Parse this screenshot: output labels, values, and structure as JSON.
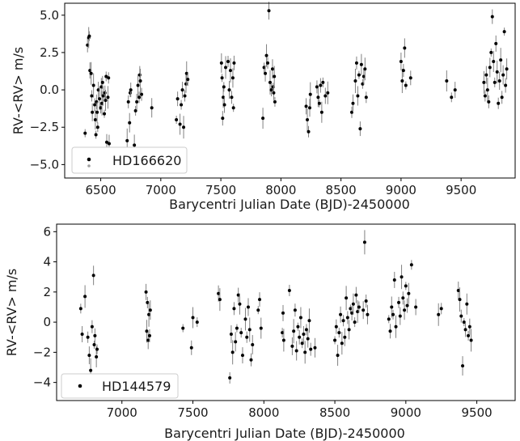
{
  "chart_data": [
    {
      "type": "scatter",
      "title": "",
      "xlabel": "Barycentri Julian Date (BJD)-2450000",
      "ylabel": "RV-<RV> m/s",
      "xlim": [
        6200,
        9950
      ],
      "ylim": [
        -5.9,
        5.8
      ],
      "xticks": [
        6500,
        7000,
        7500,
        8000,
        8500,
        9000,
        9500
      ],
      "xtick_labels": [
        "6500",
        "7000",
        "7500",
        "8000",
        "8500",
        "9000",
        "9500"
      ],
      "yticks": [
        -5.0,
        -2.5,
        0.0,
        2.5,
        5.0
      ],
      "ytick_labels": [
        "−5.0",
        "−2.5",
        "0.0",
        "2.5",
        "5.0"
      ],
      "grid": false,
      "legend_position": "lower-left",
      "series": [
        {
          "name": "HD166620",
          "marker_color": "#000000",
          "errorbar_color": "#808080",
          "points": [
            [
              6370,
              -2.9
            ],
            [
              6390,
              3.0
            ],
            [
              6400,
              3.5
            ],
            [
              6405,
              3.6
            ],
            [
              6410,
              1.3
            ],
            [
              6420,
              1.1
            ],
            [
              6425,
              -0.4
            ],
            [
              6430,
              -1.5
            ],
            [
              6440,
              0.3
            ],
            [
              6450,
              -1.0
            ],
            [
              6455,
              -2.0
            ],
            [
              6460,
              -3.0
            ],
            [
              6465,
              -0.8
            ],
            [
              6470,
              -1.5
            ],
            [
              6475,
              -2.5
            ],
            [
              6480,
              0.0
            ],
            [
              6490,
              -0.6
            ],
            [
              6500,
              -1.2
            ],
            [
              6505,
              0.2
            ],
            [
              6510,
              -0.9
            ],
            [
              6515,
              0.5
            ],
            [
              6520,
              -0.4
            ],
            [
              6530,
              -1.6
            ],
            [
              6535,
              -0.2
            ],
            [
              6540,
              -0.7
            ],
            [
              6545,
              0.9
            ],
            [
              6550,
              -3.5
            ],
            [
              6560,
              -0.5
            ],
            [
              6565,
              0.8
            ],
            [
              6570,
              -3.6
            ],
            [
              6720,
              -3.4
            ],
            [
              6730,
              -0.8
            ],
            [
              6740,
              -2.2
            ],
            [
              6745,
              -0.2
            ],
            [
              6750,
              0.0
            ],
            [
              6780,
              -3.7
            ],
            [
              6790,
              -1.4
            ],
            [
              6800,
              -0.8
            ],
            [
              6810,
              0.3
            ],
            [
              6820,
              -0.5
            ],
            [
              6825,
              1.0
            ],
            [
              6830,
              0.6
            ],
            [
              6840,
              -0.3
            ],
            [
              6925,
              -1.2
            ],
            [
              7130,
              -2.0
            ],
            [
              7140,
              -0.6
            ],
            [
              7160,
              -2.3
            ],
            [
              7170,
              -1.0
            ],
            [
              7180,
              0.0
            ],
            [
              7190,
              -2.5
            ],
            [
              7200,
              -0.4
            ],
            [
              7210,
              0.4
            ],
            [
              7215,
              1.1
            ],
            [
              7225,
              0.7
            ],
            [
              7505,
              1.8
            ],
            [
              7510,
              0.8
            ],
            [
              7515,
              -1.9
            ],
            [
              7520,
              -0.5
            ],
            [
              7525,
              0.2
            ],
            [
              7530,
              -1.0
            ],
            [
              7540,
              1.5
            ],
            [
              7560,
              1.9
            ],
            [
              7570,
              0.0
            ],
            [
              7580,
              1.3
            ],
            [
              7590,
              -0.5
            ],
            [
              7600,
              0.8
            ],
            [
              7605,
              -1.2
            ],
            [
              7610,
              1.8
            ],
            [
              7850,
              -1.9
            ],
            [
              7860,
              1.5
            ],
            [
              7870,
              1.1
            ],
            [
              7880,
              2.3
            ],
            [
              7890,
              1.8
            ],
            [
              7900,
              5.3
            ],
            [
              7910,
              0.5
            ],
            [
              7920,
              0.0
            ],
            [
              7930,
              1.4
            ],
            [
              7935,
              0.2
            ],
            [
              7940,
              -0.2
            ],
            [
              7945,
              0.9
            ],
            [
              7950,
              -0.8
            ],
            [
              8210,
              -1.1
            ],
            [
              8220,
              -2.0
            ],
            [
              8230,
              -2.8
            ],
            [
              8240,
              -1.2
            ],
            [
              8245,
              -0.3
            ],
            [
              8300,
              0.2
            ],
            [
              8310,
              -0.5
            ],
            [
              8320,
              -0.9
            ],
            [
              8330,
              0.3
            ],
            [
              8340,
              -1.5
            ],
            [
              8350,
              0.5
            ],
            [
              8370,
              -0.4
            ],
            [
              8390,
              -0.2
            ],
            [
              8590,
              -1.5
            ],
            [
              8600,
              -0.9
            ],
            [
              8620,
              0.6
            ],
            [
              8630,
              1.8
            ],
            [
              8640,
              -0.4
            ],
            [
              8650,
              1.0
            ],
            [
              8660,
              -2.6
            ],
            [
              8670,
              1.7
            ],
            [
              8680,
              0.4
            ],
            [
              8690,
              0.9
            ],
            [
              8700,
              1.4
            ],
            [
              8710,
              -0.5
            ],
            [
              9000,
              1.9
            ],
            [
              9010,
              0.6
            ],
            [
              9020,
              1.3
            ],
            [
              9030,
              2.8
            ],
            [
              9040,
              0.3
            ],
            [
              9080,
              0.8
            ],
            [
              9380,
              0.6
            ],
            [
              9420,
              -0.5
            ],
            [
              9450,
              0.0
            ],
            [
              9690,
              0.5
            ],
            [
              9700,
              -0.4
            ],
            [
              9710,
              1.0
            ],
            [
              9720,
              0.0
            ],
            [
              9730,
              -0.8
            ],
            [
              9740,
              1.5
            ],
            [
              9750,
              2.5
            ],
            [
              9760,
              4.9
            ],
            [
              9770,
              1.9
            ],
            [
              9780,
              0.5
            ],
            [
              9790,
              3.1
            ],
            [
              9800,
              1.2
            ],
            [
              9810,
              -0.9
            ],
            [
              9820,
              0.6
            ],
            [
              9830,
              2.0
            ],
            [
              9840,
              -0.5
            ],
            [
              9850,
              1.0
            ],
            [
              9860,
              3.9
            ],
            [
              9870,
              0.3
            ],
            [
              9880,
              1.4
            ]
          ]
        }
      ]
    },
    {
      "type": "scatter",
      "title": "",
      "xlabel": "Barycentri Julian Date (BJD)-2450000",
      "ylabel": "RV-<RV> m/s",
      "xlim": [
        6540,
        9770
      ],
      "ylim": [
        -5.2,
        6.5
      ],
      "xticks": [
        7000,
        7500,
        8000,
        8500,
        9000,
        9500
      ],
      "xtick_labels": [
        "7000",
        "7500",
        "8000",
        "8500",
        "9000",
        "9500"
      ],
      "yticks": [
        -4,
        -2,
        0,
        2,
        4,
        6
      ],
      "ytick_labels": [
        "−4",
        "−2",
        "0",
        "2",
        "4",
        "6"
      ],
      "grid": false,
      "legend_position": "lower-left",
      "series": [
        {
          "name": "HD144579",
          "marker_color": "#000000",
          "errorbar_color": "#808080",
          "points": [
            [
              6710,
              0.9
            ],
            [
              6720,
              -0.8
            ],
            [
              6740,
              1.7
            ],
            [
              6760,
              -1.0
            ],
            [
              6770,
              -2.2
            ],
            [
              6780,
              -3.2
            ],
            [
              6790,
              -0.3
            ],
            [
              6800,
              3.1
            ],
            [
              6805,
              -1.5
            ],
            [
              6810,
              -0.9
            ],
            [
              6820,
              -2.3
            ],
            [
              6825,
              -1.8
            ],
            [
              7170,
              2.0
            ],
            [
              7175,
              -0.6
            ],
            [
              7180,
              1.3
            ],
            [
              7185,
              -1.2
            ],
            [
              7190,
              0.5
            ],
            [
              7195,
              -0.9
            ],
            [
              7200,
              0.8
            ],
            [
              7430,
              -0.4
            ],
            [
              7490,
              -1.7
            ],
            [
              7500,
              0.3
            ],
            [
              7530,
              0.0
            ],
            [
              7680,
              1.9
            ],
            [
              7690,
              1.5
            ],
            [
              7760,
              -3.7
            ],
            [
              7770,
              -0.8
            ],
            [
              7780,
              -2.0
            ],
            [
              7790,
              0.9
            ],
            [
              7800,
              -1.3
            ],
            [
              7810,
              -0.4
            ],
            [
              7820,
              1.8
            ],
            [
              7830,
              1.2
            ],
            [
              7840,
              -0.7
            ],
            [
              7850,
              -2.2
            ],
            [
              7870,
              0.2
            ],
            [
              7880,
              -1.0
            ],
            [
              7890,
              1.0
            ],
            [
              7900,
              -0.5
            ],
            [
              7910,
              -2.5
            ],
            [
              7920,
              -1.5
            ],
            [
              7960,
              0.8
            ],
            [
              7970,
              1.5
            ],
            [
              7980,
              -0.4
            ],
            [
              8130,
              -0.7
            ],
            [
              8135,
              0.6
            ],
            [
              8140,
              -1.2
            ],
            [
              8180,
              2.1
            ],
            [
              8200,
              -1.6
            ],
            [
              8210,
              -0.6
            ],
            [
              8220,
              0.8
            ],
            [
              8230,
              -1.9
            ],
            [
              8240,
              -0.3
            ],
            [
              8250,
              -1.0
            ],
            [
              8260,
              0.3
            ],
            [
              8270,
              -1.4
            ],
            [
              8280,
              -0.8
            ],
            [
              8290,
              -2.0
            ],
            [
              8300,
              -0.5
            ],
            [
              8310,
              -1.1
            ],
            [
              8320,
              0.1
            ],
            [
              8330,
              -1.8
            ],
            [
              8360,
              -1.7
            ],
            [
              8500,
              -1.2
            ],
            [
              8510,
              -0.3
            ],
            [
              8520,
              -2.2
            ],
            [
              8530,
              -0.7
            ],
            [
              8540,
              0.5
            ],
            [
              8550,
              -1.4
            ],
            [
              8560,
              0.1
            ],
            [
              8570,
              -1.0
            ],
            [
              8580,
              1.6
            ],
            [
              8590,
              0.3
            ],
            [
              8600,
              -0.5
            ],
            [
              8610,
              0.9
            ],
            [
              8620,
              0.6
            ],
            [
              8630,
              1.2
            ],
            [
              8640,
              0.0
            ],
            [
              8650,
              1.8
            ],
            [
              8660,
              0.7
            ],
            [
              8670,
              1.0
            ],
            [
              8700,
              0.8
            ],
            [
              8710,
              5.3
            ],
            [
              8720,
              1.4
            ],
            [
              8730,
              0.5
            ],
            [
              8880,
              0.2
            ],
            [
              8890,
              -0.6
            ],
            [
              8900,
              1.0
            ],
            [
              8910,
              0.5
            ],
            [
              8920,
              2.8
            ],
            [
              8930,
              -0.3
            ],
            [
              8950,
              1.3
            ],
            [
              8960,
              0.4
            ],
            [
              8970,
              3.0
            ],
            [
              8980,
              1.6
            ],
            [
              8990,
              0.8
            ],
            [
              9000,
              2.4
            ],
            [
              9010,
              1.1
            ],
            [
              9020,
              1.9
            ],
            [
              9040,
              3.8
            ],
            [
              9070,
              1.0
            ],
            [
              9230,
              0.5
            ],
            [
              9250,
              0.9
            ],
            [
              9370,
              2.1
            ],
            [
              9380,
              1.5
            ],
            [
              9390,
              0.4
            ],
            [
              9400,
              -2.9
            ],
            [
              9410,
              0.0
            ],
            [
              9420,
              -0.5
            ],
            [
              9430,
              1.2
            ],
            [
              9440,
              -0.9
            ],
            [
              9450,
              -0.3
            ],
            [
              9460,
              -1.2
            ]
          ]
        }
      ]
    }
  ]
}
